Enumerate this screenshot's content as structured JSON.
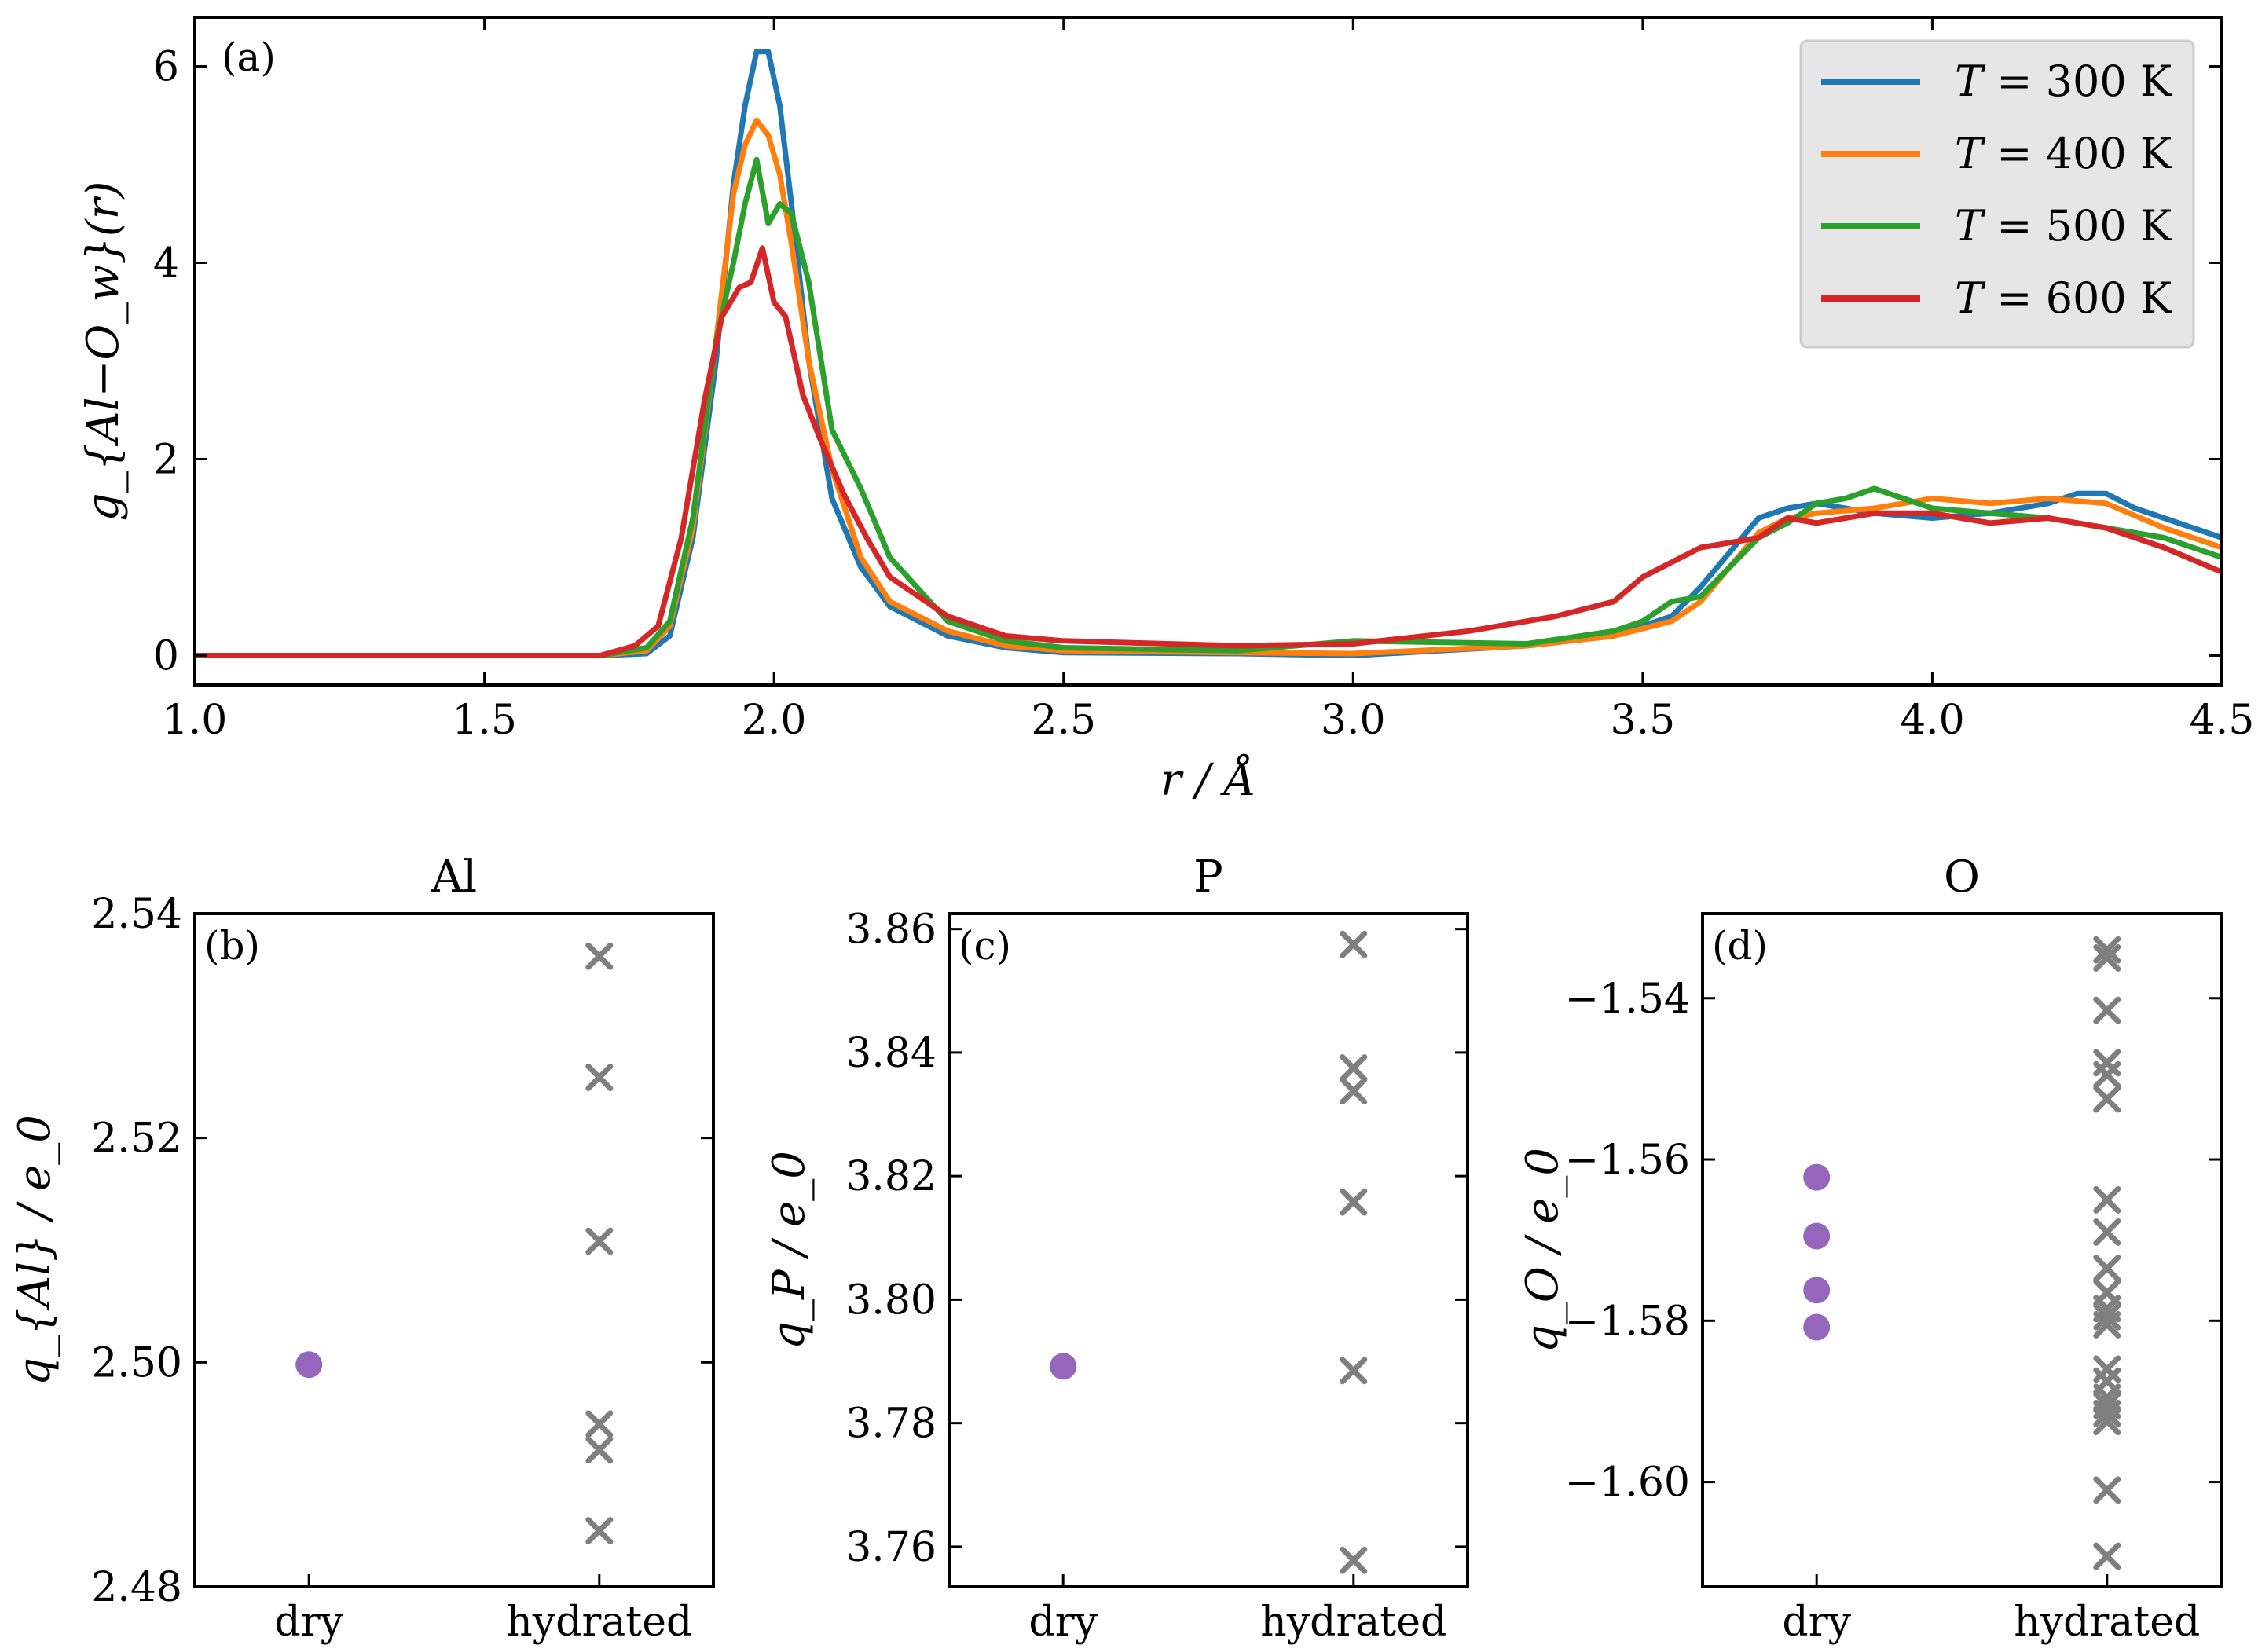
{
  "colors": {
    "c300": "#1f77b4",
    "c400": "#ff7f0e",
    "c500": "#2ca02c",
    "c600": "#d62728",
    "dry": "#9467bd",
    "hydrated": "#7f7f7f"
  },
  "chart_data": [
    {
      "id": "a",
      "type": "line",
      "panel_tag": "(a)",
      "title": "",
      "xlabel": "r / Å",
      "ylabel": "g_{Al−O_w}(r)",
      "xlim": [
        1.0,
        4.5
      ],
      "ylim": [
        -0.3,
        6.5
      ],
      "xticks": [
        "1.0",
        "1.5",
        "2.0",
        "2.5",
        "3.0",
        "3.5",
        "4.0",
        "4.5"
      ],
      "yticks": [
        "0",
        "2",
        "4",
        "6"
      ],
      "legend": "top-right",
      "series": [
        {
          "name": "T = 300 K",
          "label_T": "T",
          "label_rest": " = 300 K",
          "color_key": "c300",
          "x": [
            1.0,
            1.7,
            1.78,
            1.82,
            1.86,
            1.9,
            1.93,
            1.95,
            1.97,
            1.99,
            2.01,
            2.03,
            2.06,
            2.1,
            2.15,
            2.2,
            2.3,
            2.4,
            2.5,
            2.8,
            3.0,
            3.3,
            3.45,
            3.55,
            3.6,
            3.65,
            3.7,
            3.75,
            3.8,
            3.85,
            3.9,
            4.0,
            4.1,
            4.2,
            4.25,
            4.3,
            4.35,
            4.4,
            4.5
          ],
          "y": [
            0,
            0,
            0.02,
            0.2,
            1.2,
            3.0,
            4.8,
            5.6,
            6.15,
            6.15,
            5.6,
            4.6,
            3.0,
            1.6,
            0.9,
            0.5,
            0.2,
            0.08,
            0.03,
            0.02,
            0.0,
            0.1,
            0.2,
            0.4,
            0.7,
            1.05,
            1.4,
            1.5,
            1.55,
            1.5,
            1.45,
            1.4,
            1.45,
            1.55,
            1.65,
            1.65,
            1.5,
            1.4,
            1.2
          ]
        },
        {
          "name": "T = 400 K",
          "label_T": "T",
          "label_rest": " = 400 K",
          "color_key": "c400",
          "x": [
            1.0,
            1.7,
            1.78,
            1.82,
            1.86,
            1.9,
            1.93,
            1.95,
            1.97,
            1.99,
            2.01,
            2.03,
            2.06,
            2.1,
            2.15,
            2.2,
            2.3,
            2.4,
            2.5,
            2.8,
            3.0,
            3.3,
            3.45,
            3.55,
            3.6,
            3.65,
            3.7,
            3.75,
            3.8,
            3.9,
            4.0,
            4.1,
            4.2,
            4.3,
            4.4,
            4.5
          ],
          "y": [
            0,
            0,
            0.05,
            0.3,
            1.3,
            3.2,
            4.7,
            5.2,
            5.45,
            5.3,
            4.9,
            4.2,
            3.0,
            1.9,
            1.0,
            0.55,
            0.25,
            0.1,
            0.05,
            0.03,
            0.02,
            0.1,
            0.2,
            0.35,
            0.55,
            0.9,
            1.25,
            1.4,
            1.45,
            1.5,
            1.6,
            1.55,
            1.6,
            1.55,
            1.3,
            1.1
          ]
        },
        {
          "name": "T = 500 K",
          "label_T": "T",
          "label_rest": " = 500 K",
          "color_key": "c500",
          "x": [
            1.0,
            1.7,
            1.78,
            1.82,
            1.86,
            1.9,
            1.93,
            1.95,
            1.97,
            1.99,
            2.01,
            2.03,
            2.06,
            2.1,
            2.15,
            2.2,
            2.3,
            2.4,
            2.5,
            2.8,
            3.0,
            3.3,
            3.45,
            3.5,
            3.55,
            3.6,
            3.65,
            3.7,
            3.75,
            3.8,
            3.85,
            3.9,
            3.95,
            4.0,
            4.1,
            4.2,
            4.3,
            4.4,
            4.5
          ],
          "y": [
            0,
            0,
            0.08,
            0.35,
            1.4,
            3.2,
            4.0,
            4.6,
            5.05,
            4.4,
            4.6,
            4.5,
            3.8,
            2.3,
            1.7,
            1.0,
            0.35,
            0.15,
            0.08,
            0.05,
            0.15,
            0.12,
            0.25,
            0.35,
            0.55,
            0.6,
            0.9,
            1.2,
            1.35,
            1.55,
            1.6,
            1.7,
            1.6,
            1.5,
            1.45,
            1.4,
            1.3,
            1.2,
            1.0
          ]
        },
        {
          "name": "T = 600 K",
          "label_T": "T",
          "label_rest": " = 600 K",
          "color_key": "c600",
          "x": [
            1.0,
            1.7,
            1.76,
            1.8,
            1.84,
            1.88,
            1.91,
            1.94,
            1.96,
            1.98,
            2.0,
            2.02,
            2.05,
            2.08,
            2.12,
            2.16,
            2.2,
            2.3,
            2.4,
            2.5,
            2.8,
            3.0,
            3.2,
            3.35,
            3.45,
            3.5,
            3.55,
            3.6,
            3.65,
            3.7,
            3.75,
            3.8,
            3.9,
            4.0,
            4.1,
            4.2,
            4.3,
            4.4,
            4.5
          ],
          "y": [
            0,
            0,
            0.1,
            0.3,
            1.2,
            2.6,
            3.45,
            3.75,
            3.8,
            4.15,
            3.6,
            3.45,
            2.65,
            2.2,
            1.65,
            1.2,
            0.8,
            0.4,
            0.2,
            0.15,
            0.1,
            0.12,
            0.25,
            0.4,
            0.55,
            0.8,
            0.95,
            1.1,
            1.15,
            1.2,
            1.4,
            1.35,
            1.45,
            1.45,
            1.35,
            1.4,
            1.3,
            1.1,
            0.85
          ]
        }
      ]
    },
    {
      "id": "b",
      "type": "scatter",
      "panel_tag": "(b)",
      "title": "Al",
      "xlabel": "",
      "ylabel": "q_{Al} / e_0",
      "categories": [
        "dry",
        "hydrated"
      ],
      "ylim": [
        2.48,
        2.54
      ],
      "yticks": [
        "2.48",
        "2.50",
        "2.52",
        "2.54"
      ],
      "dry": [
        2.4998
      ],
      "hydrated": [
        2.5362,
        2.5254,
        2.5108,
        2.4945,
        2.4922,
        2.485
      ]
    },
    {
      "id": "c",
      "type": "scatter",
      "panel_tag": "(c)",
      "title": "P",
      "xlabel": "",
      "ylabel": "q_P / e_0",
      "categories": [
        "dry",
        "hydrated"
      ],
      "ylim": [
        3.7535,
        3.8625
      ],
      "yticks": [
        "3.76",
        "3.78",
        "3.80",
        "3.82",
        "3.84",
        "3.86"
      ],
      "dry": [
        3.7892
      ],
      "hydrated": [
        3.8575,
        3.8375,
        3.8338,
        3.8158,
        3.7885,
        3.7578
      ]
    },
    {
      "id": "d",
      "type": "scatter",
      "panel_tag": "(d)",
      "title": "O",
      "xlabel": "",
      "ylabel": "q_O / e_0",
      "categories": [
        "dry",
        "hydrated"
      ],
      "ylim": [
        -1.613,
        -1.5295
      ],
      "yticks": [
        "−1.54",
        "−1.56",
        "−1.58",
        "−1.60"
      ],
      "dry": [
        -1.5622,
        -1.5695,
        -1.5762,
        -1.5808
      ],
      "hydrated": [
        -1.534,
        -1.535,
        -1.5415,
        -1.548,
        -1.5495,
        -1.5525,
        -1.565,
        -1.569,
        -1.5735,
        -1.5765,
        -1.5785,
        -1.5795,
        -1.5805,
        -1.586,
        -1.5875,
        -1.5895,
        -1.5905,
        -1.5915,
        -1.5925,
        -1.601,
        -1.6092
      ]
    }
  ]
}
